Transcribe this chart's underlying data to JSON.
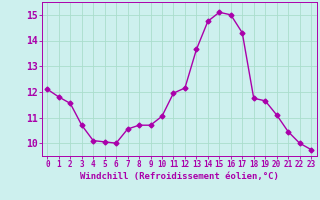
{
  "x": [
    0,
    1,
    2,
    3,
    4,
    5,
    6,
    7,
    8,
    9,
    10,
    11,
    12,
    13,
    14,
    15,
    16,
    17,
    18,
    19,
    20,
    21,
    22,
    23
  ],
  "y": [
    12.1,
    11.8,
    11.55,
    10.7,
    10.1,
    10.05,
    10.0,
    10.55,
    10.7,
    10.7,
    11.05,
    11.95,
    12.15,
    13.65,
    14.75,
    15.1,
    15.0,
    14.3,
    11.75,
    11.65,
    11.1,
    10.45,
    10.0,
    9.75
  ],
  "line_color": "#aa00aa",
  "marker": "D",
  "markersize": 2.5,
  "linewidth": 1.0,
  "xlabel": "Windchill (Refroidissement éolien,°C)",
  "xlabel_color": "#aa00aa",
  "xlim": [
    -0.5,
    23.5
  ],
  "ylim": [
    9.5,
    15.5
  ],
  "yticks": [
    10,
    11,
    12,
    13,
    14,
    15
  ],
  "xticks": [
    0,
    1,
    2,
    3,
    4,
    5,
    6,
    7,
    8,
    9,
    10,
    11,
    12,
    13,
    14,
    15,
    16,
    17,
    18,
    19,
    20,
    21,
    22,
    23
  ],
  "background_color": "#cdf0ee",
  "grid_color": "#aaddcc",
  "tick_color": "#aa00aa",
  "tick_labelsize": 5.5,
  "xlabel_fontsize": 6.5,
  "ylabel_labelsize": 7
}
